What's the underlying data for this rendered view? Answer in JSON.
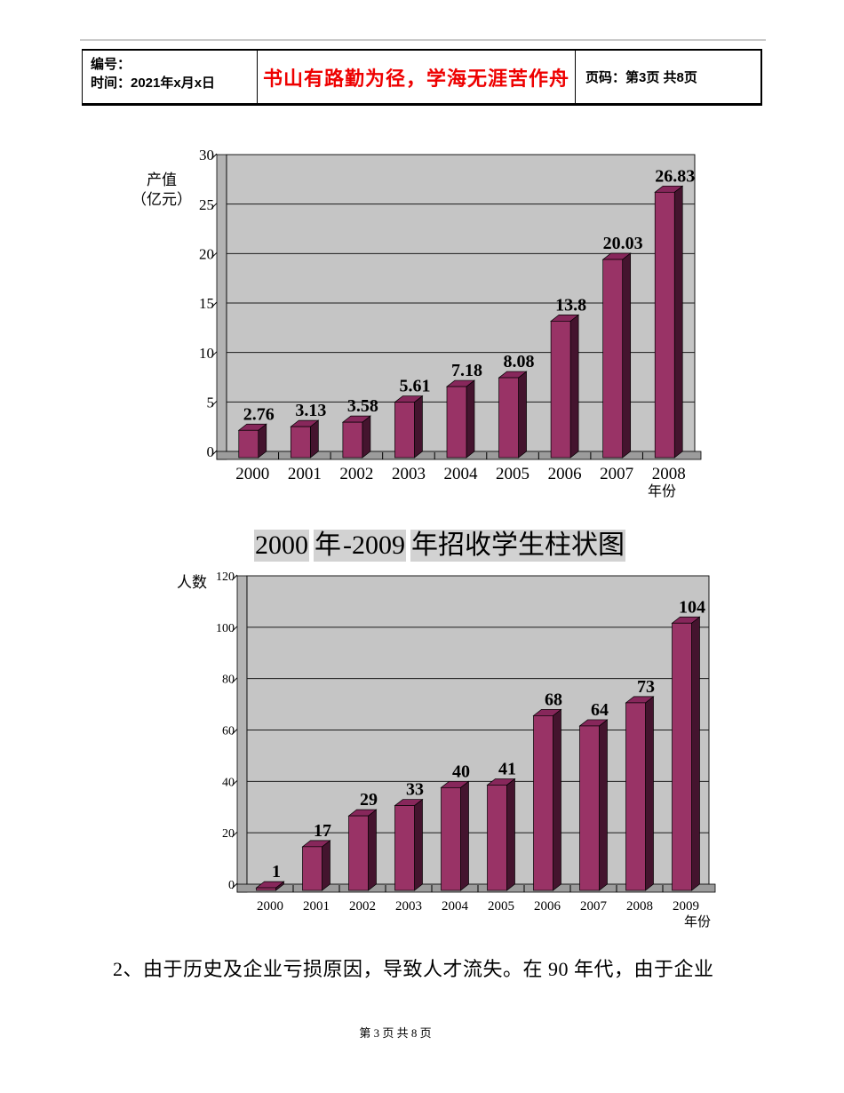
{
  "header": {
    "number_label": "编号：",
    "time_label": "时间：2021年x月x日",
    "motto": "书山有路勤为径，学海无涯苦作舟",
    "motto_color": "#ee0000",
    "page_label": "页码：第3页 共8页"
  },
  "chart_data": [
    {
      "type": "bar",
      "title": "",
      "ylabel_lines": [
        "产值",
        "（亿元）"
      ],
      "xlabel": "年份",
      "categories": [
        "2000",
        "2001",
        "2002",
        "2003",
        "2004",
        "2005",
        "2006",
        "2007",
        "2008"
      ],
      "values": [
        2.76,
        3.13,
        3.58,
        5.61,
        7.18,
        8.08,
        13.8,
        20.03,
        26.83
      ],
      "value_labels": [
        "2.76",
        "3.13",
        "3.58",
        "5.61",
        "7.18",
        "8.08",
        "13.8",
        "20.03",
        "26.83"
      ],
      "yticks": [
        0,
        5,
        10,
        15,
        20,
        25,
        30
      ],
      "ylim": [
        0,
        30
      ],
      "grid": true,
      "legend": false,
      "style_3d": true,
      "colors": {
        "bar_front": "#993366",
        "bar_side": "#44142e",
        "bar_top": "#87275b",
        "plot_bg": "#c5c5c5",
        "wall": "#b3b3b3",
        "floor": "#9c9c9c",
        "grid_line": "#1a1a1a"
      }
    },
    {
      "type": "bar",
      "title": "2000年-2009年招收学生柱状图",
      "title_segments": [
        {
          "text": "2000",
          "gap_before": false
        },
        {
          "text": "年",
          "gap_before": true
        },
        {
          "text": "-2009",
          "gap_before": false
        },
        {
          "text": "年招收学生柱状图",
          "gap_before": true
        }
      ],
      "title_highlight": "#d2d2d2",
      "ylabel_lines": [
        "人数"
      ],
      "xlabel": "年份",
      "categories": [
        "2000",
        "2001",
        "2002",
        "2003",
        "2004",
        "2005",
        "2006",
        "2007",
        "2008",
        "2009"
      ],
      "values": [
        1,
        17,
        29,
        33,
        40,
        41,
        68,
        64,
        73,
        104
      ],
      "value_labels": [
        "1",
        "17",
        "29",
        "33",
        "40",
        "41",
        "68",
        "64",
        "73",
        "104"
      ],
      "yticks": [
        0,
        20,
        40,
        60,
        80,
        100,
        120
      ],
      "ylim": [
        0,
        120
      ],
      "grid": true,
      "legend": false,
      "style_3d": true,
      "colors": {
        "bar_front": "#993366",
        "bar_side": "#44142e",
        "bar_top": "#87275b",
        "plot_bg": "#c5c5c5",
        "wall": "#b3b3b3",
        "floor": "#9c9c9c",
        "grid_line": "#1a1a1a"
      }
    }
  ],
  "body_text": "2、由于历史及企业亏损原因，导致人才流失。在 90 年代，由于企业",
  "footer": "第 3 页 共 8 页"
}
